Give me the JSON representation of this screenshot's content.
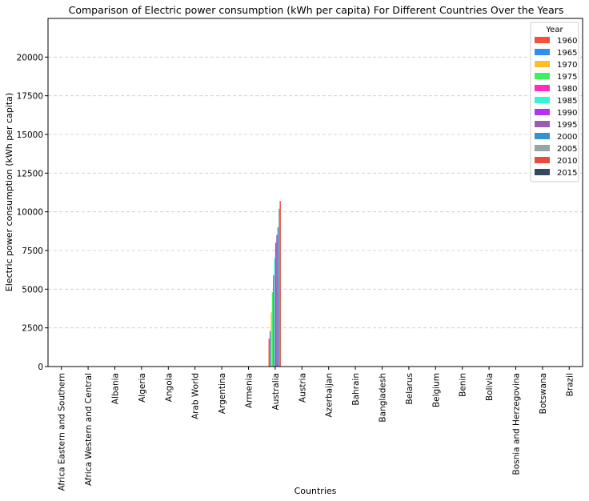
{
  "chart_data": {
    "type": "bar",
    "title": "Comparison of Electric power consumption (kWh per capita) For Different Countries Over the Years",
    "xlabel": "Countries",
    "ylabel": "Electric power consumption (kWh per capita)",
    "ylim": [
      0,
      22500
    ],
    "yticks": [
      "0",
      "2500",
      "5000",
      "7500",
      "10000",
      "12500",
      "15000",
      "17500",
      "20000"
    ],
    "grid": "y-dashed",
    "legend_title": "Year",
    "legend_position": "top-right",
    "categories": [
      "Africa Eastern and Southern",
      "Africa Western and Central",
      "Albania",
      "Algeria",
      "Angola",
      "Arab World",
      "Argentina",
      "Armenia",
      "Australia",
      "Austria",
      "Azerbaijan",
      "Bahrain",
      "Bangladesh",
      "Belarus",
      "Belgium",
      "Benin",
      "Bolivia",
      "Bosnia and Herzegovina",
      "Botswana",
      "Brazil"
    ],
    "series": [
      {
        "name": "1960",
        "color": "#f4513b",
        "values": [
          null,
          null,
          null,
          null,
          null,
          null,
          null,
          null,
          1800,
          null,
          null,
          null,
          null,
          null,
          null,
          null,
          null,
          null,
          null,
          null
        ]
      },
      {
        "name": "1965",
        "color": "#2e8ff0",
        "values": [
          null,
          null,
          null,
          null,
          null,
          null,
          null,
          null,
          2300,
          null,
          null,
          null,
          null,
          null,
          null,
          null,
          null,
          null,
          null,
          null
        ]
      },
      {
        "name": "1970",
        "color": "#ffbe26",
        "values": [
          null,
          null,
          null,
          null,
          null,
          null,
          null,
          null,
          3500,
          null,
          null,
          null,
          null,
          null,
          null,
          null,
          null,
          null,
          null,
          null
        ]
      },
      {
        "name": "1975",
        "color": "#3cf25a",
        "values": [
          null,
          null,
          null,
          null,
          null,
          null,
          null,
          null,
          4800,
          null,
          null,
          null,
          null,
          null,
          null,
          null,
          null,
          null,
          null,
          null
        ]
      },
      {
        "name": "1980",
        "color": "#ff2dbf",
        "values": [
          null,
          null,
          null,
          null,
          null,
          null,
          null,
          null,
          5900,
          null,
          null,
          null,
          null,
          null,
          null,
          null,
          null,
          null,
          null,
          null
        ]
      },
      {
        "name": "1985",
        "color": "#34f5d2",
        "values": [
          null,
          null,
          null,
          null,
          null,
          null,
          null,
          null,
          7000,
          null,
          null,
          null,
          null,
          null,
          null,
          null,
          null,
          null,
          null,
          null
        ]
      },
      {
        "name": "1990",
        "color": "#b333f5",
        "values": [
          null,
          null,
          null,
          null,
          null,
          null,
          null,
          null,
          8000,
          null,
          null,
          null,
          null,
          null,
          null,
          null,
          null,
          null,
          null,
          null
        ]
      },
      {
        "name": "1995",
        "color": "#9a5cb4",
        "values": [
          null,
          null,
          null,
          null,
          null,
          null,
          null,
          null,
          8500,
          null,
          null,
          null,
          null,
          null,
          null,
          null,
          null,
          null,
          null,
          null
        ]
      },
      {
        "name": "2000",
        "color": "#3591d6",
        "values": [
          null,
          null,
          null,
          null,
          null,
          null,
          null,
          null,
          9000,
          null,
          null,
          null,
          null,
          null,
          null,
          null,
          null,
          null,
          null,
          null
        ]
      },
      {
        "name": "2005",
        "color": "#95a5a4",
        "values": [
          null,
          null,
          null,
          null,
          null,
          null,
          null,
          null,
          10200,
          null,
          null,
          null,
          null,
          null,
          null,
          null,
          null,
          null,
          null,
          null
        ]
      },
      {
        "name": "2010",
        "color": "#e74c3c",
        "values": [
          null,
          null,
          null,
          null,
          null,
          null,
          null,
          null,
          10700,
          null,
          null,
          null,
          null,
          null,
          null,
          null,
          null,
          null,
          null,
          null
        ]
      },
      {
        "name": "2015",
        "color": "#34495e",
        "values": [
          null,
          null,
          null,
          null,
          null,
          null,
          null,
          null,
          null,
          null,
          null,
          null,
          null,
          null,
          null,
          null,
          null,
          null,
          null,
          null
        ]
      }
    ]
  }
}
